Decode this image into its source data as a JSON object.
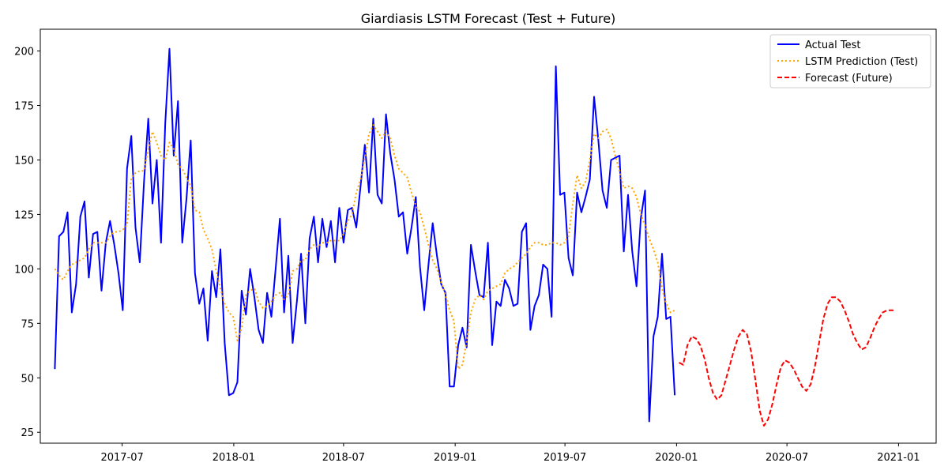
{
  "chart_data": {
    "type": "line",
    "title": "Giardiasis LSTM Forecast (Test + Future)",
    "xlabel": "",
    "ylabel": "",
    "xlim": [
      "2017-02-16",
      "2021-03-04"
    ],
    "ylim": [
      20,
      210
    ],
    "y_ticks": [
      25,
      50,
      75,
      100,
      125,
      150,
      175,
      200
    ],
    "x_ticks": [
      {
        "date": "2017-07-01",
        "label": "2017-07"
      },
      {
        "date": "2018-01-01",
        "label": "2018-01"
      },
      {
        "date": "2018-07-01",
        "label": "2018-07"
      },
      {
        "date": "2019-01-01",
        "label": "2019-01"
      },
      {
        "date": "2019-07-01",
        "label": "2019-07"
      },
      {
        "date": "2020-01-01",
        "label": "2020-01"
      },
      {
        "date": "2020-07-01",
        "label": "2020-07"
      },
      {
        "date": "2021-01-01",
        "label": "2021-01"
      }
    ],
    "grid": false,
    "legend_position": "top-right",
    "series": [
      {
        "name": "Actual Test",
        "color": "#0000ff",
        "style": "solid",
        "x": [
          "2017-03-12",
          "2017-03-19",
          "2017-03-26",
          "2017-04-02",
          "2017-04-09",
          "2017-04-16",
          "2017-04-23",
          "2017-04-30",
          "2017-05-07",
          "2017-05-14",
          "2017-05-21",
          "2017-05-28",
          "2017-06-04",
          "2017-06-11",
          "2017-06-18",
          "2017-06-25",
          "2017-07-02",
          "2017-07-09",
          "2017-07-16",
          "2017-07-23",
          "2017-07-30",
          "2017-08-06",
          "2017-08-13",
          "2017-08-20",
          "2017-08-27",
          "2017-09-03",
          "2017-09-10",
          "2017-09-17",
          "2017-09-24",
          "2017-10-01",
          "2017-10-08",
          "2017-10-15",
          "2017-10-22",
          "2017-10-29",
          "2017-11-05",
          "2017-11-12",
          "2017-11-19",
          "2017-11-26",
          "2017-12-03",
          "2017-12-10",
          "2017-12-17",
          "2017-12-24",
          "2017-12-31",
          "2018-01-07",
          "2018-01-14",
          "2018-01-21",
          "2018-01-28",
          "2018-02-04",
          "2018-02-11",
          "2018-02-18",
          "2018-02-25",
          "2018-03-04",
          "2018-03-11",
          "2018-03-18",
          "2018-03-25",
          "2018-04-01",
          "2018-04-08",
          "2018-04-15",
          "2018-04-22",
          "2018-04-29",
          "2018-05-06",
          "2018-05-13",
          "2018-05-20",
          "2018-05-27",
          "2018-06-03",
          "2018-06-10",
          "2018-06-17",
          "2018-06-24",
          "2018-07-01",
          "2018-07-08",
          "2018-07-15",
          "2018-07-22",
          "2018-07-29",
          "2018-08-05",
          "2018-08-12",
          "2018-08-19",
          "2018-08-26",
          "2018-09-02",
          "2018-09-09",
          "2018-09-16",
          "2018-09-23",
          "2018-09-30",
          "2018-10-07",
          "2018-10-14",
          "2018-10-21",
          "2018-10-28",
          "2018-11-04",
          "2018-11-11",
          "2018-11-18",
          "2018-11-25",
          "2018-12-02",
          "2018-12-09",
          "2018-12-16",
          "2018-12-23",
          "2018-12-30",
          "2019-01-06",
          "2019-01-13",
          "2019-01-20",
          "2019-01-27",
          "2019-02-03",
          "2019-02-10",
          "2019-02-17",
          "2019-02-24",
          "2019-03-03",
          "2019-03-10",
          "2019-03-17",
          "2019-03-24",
          "2019-03-31",
          "2019-04-07",
          "2019-04-14",
          "2019-04-21",
          "2019-04-28",
          "2019-05-05",
          "2019-05-12",
          "2019-05-19",
          "2019-05-26",
          "2019-06-02",
          "2019-06-09",
          "2019-06-16",
          "2019-06-23",
          "2019-06-30",
          "2019-07-07",
          "2019-07-14",
          "2019-07-21",
          "2019-07-28",
          "2019-08-04",
          "2019-08-11",
          "2019-08-18",
          "2019-08-25",
          "2019-09-01",
          "2019-09-08",
          "2019-09-15",
          "2019-09-22",
          "2019-09-29",
          "2019-10-06",
          "2019-10-13",
          "2019-10-20",
          "2019-10-27",
          "2019-11-03",
          "2019-11-10",
          "2019-11-17",
          "2019-11-24",
          "2019-12-01",
          "2019-12-08",
          "2019-12-15",
          "2019-12-22",
          "2019-12-29"
        ],
        "values": [
          54,
          115,
          117,
          126,
          80,
          93,
          124,
          131,
          96,
          116,
          117,
          90,
          112,
          122,
          111,
          98,
          81,
          146,
          161,
          119,
          103,
          140,
          169,
          130,
          150,
          112,
          167,
          201,
          152,
          177,
          112,
          132,
          159,
          98,
          84,
          91,
          67,
          99,
          87,
          109,
          66,
          42,
          43,
          48,
          90,
          79,
          100,
          87,
          72,
          66,
          89,
          78,
          100,
          123,
          80,
          106,
          66,
          85,
          107,
          75,
          114,
          124,
          103,
          123,
          110,
          122,
          103,
          128,
          112,
          127,
          128,
          119,
          138,
          157,
          135,
          169,
          134,
          130,
          171,
          153,
          141,
          124,
          126,
          107,
          119,
          133,
          101,
          81,
          102,
          121,
          106,
          93,
          89,
          46,
          46,
          65,
          73,
          64,
          111,
          99,
          88,
          87,
          112,
          65,
          85,
          83,
          95,
          91,
          83,
          84,
          117,
          121,
          72,
          83,
          88,
          102,
          100,
          78,
          193,
          134,
          135,
          105,
          97,
          135,
          126,
          133,
          141,
          179,
          159,
          136,
          128,
          150,
          151,
          152,
          108,
          134,
          108,
          92,
          123,
          136,
          30,
          69,
          78,
          107,
          77,
          78,
          42
        ]
      },
      {
        "name": "LSTM Prediction (Test)",
        "color": "#ffa500",
        "style": "dotted",
        "x": [
          "2017-03-12",
          "2017-03-19",
          "2017-03-26",
          "2017-04-02",
          "2017-04-09",
          "2017-04-16",
          "2017-04-23",
          "2017-04-30",
          "2017-05-07",
          "2017-05-14",
          "2017-05-21",
          "2017-05-28",
          "2017-06-04",
          "2017-06-11",
          "2017-06-18",
          "2017-06-25",
          "2017-07-02",
          "2017-07-09",
          "2017-07-16",
          "2017-07-23",
          "2017-07-30",
          "2017-08-06",
          "2017-08-13",
          "2017-08-20",
          "2017-08-27",
          "2017-09-03",
          "2017-09-10",
          "2017-09-17",
          "2017-09-24",
          "2017-10-01",
          "2017-10-08",
          "2017-10-15",
          "2017-10-22",
          "2017-10-29",
          "2017-11-05",
          "2017-11-12",
          "2017-11-19",
          "2017-11-26",
          "2017-12-03",
          "2017-12-10",
          "2017-12-17",
          "2017-12-24",
          "2017-12-31",
          "2018-01-07",
          "2018-01-14",
          "2018-01-21",
          "2018-01-28",
          "2018-02-04",
          "2018-02-11",
          "2018-02-18",
          "2018-02-25",
          "2018-03-04",
          "2018-03-11",
          "2018-03-18",
          "2018-03-25",
          "2018-04-01",
          "2018-04-08",
          "2018-04-15",
          "2018-04-22",
          "2018-04-29",
          "2018-05-06",
          "2018-05-13",
          "2018-05-20",
          "2018-05-27",
          "2018-06-03",
          "2018-06-10",
          "2018-06-17",
          "2018-06-24",
          "2018-07-01",
          "2018-07-08",
          "2018-07-15",
          "2018-07-22",
          "2018-07-29",
          "2018-08-05",
          "2018-08-12",
          "2018-08-19",
          "2018-08-26",
          "2018-09-02",
          "2018-09-09",
          "2018-09-16",
          "2018-09-23",
          "2018-09-30",
          "2018-10-07",
          "2018-10-14",
          "2018-10-21",
          "2018-10-28",
          "2018-11-04",
          "2018-11-11",
          "2018-11-18",
          "2018-11-25",
          "2018-12-02",
          "2018-12-09",
          "2018-12-16",
          "2018-12-23",
          "2018-12-30",
          "2019-01-06",
          "2019-01-13",
          "2019-01-20",
          "2019-01-27",
          "2019-02-03",
          "2019-02-10",
          "2019-02-17",
          "2019-02-24",
          "2019-03-03",
          "2019-03-10",
          "2019-03-17",
          "2019-03-24",
          "2019-03-31",
          "2019-04-07",
          "2019-04-14",
          "2019-04-21",
          "2019-04-28",
          "2019-05-05",
          "2019-05-12",
          "2019-05-19",
          "2019-05-26",
          "2019-06-02",
          "2019-06-09",
          "2019-06-16",
          "2019-06-23",
          "2019-06-30",
          "2019-07-07",
          "2019-07-14",
          "2019-07-21",
          "2019-07-28",
          "2019-08-04",
          "2019-08-11",
          "2019-08-18",
          "2019-08-25",
          "2019-09-01",
          "2019-09-08",
          "2019-09-15",
          "2019-09-22",
          "2019-09-29",
          "2019-10-06",
          "2019-10-13",
          "2019-10-20",
          "2019-10-27",
          "2019-11-03",
          "2019-11-10",
          "2019-11-17",
          "2019-11-24",
          "2019-12-01",
          "2019-12-08",
          "2019-12-15",
          "2019-12-22",
          "2019-12-29"
        ],
        "values": [
          100,
          97,
          95,
          99,
          102,
          103,
          104,
          105,
          109,
          112,
          112,
          112,
          112,
          115,
          117,
          117,
          118,
          120,
          142,
          144,
          145,
          145,
          155,
          163,
          158,
          152,
          150,
          158,
          155,
          148,
          146,
          142,
          138,
          127,
          126,
          118,
          114,
          109,
          99,
          91,
          84,
          80,
          78,
          67,
          73,
          88,
          90,
          91,
          85,
          82,
          83,
          85,
          88,
          89,
          86,
          88,
          99,
          100,
          104,
          104,
          109,
          111,
          110,
          112,
          112,
          113,
          113,
          113,
          116,
          122,
          125,
          135,
          141,
          151,
          162,
          166,
          163,
          160,
          163,
          160,
          152,
          146,
          144,
          142,
          135,
          129,
          126,
          119,
          111,
          104,
          100,
          94,
          88,
          81,
          76,
          54,
          56,
          67,
          80,
          86,
          88,
          86,
          90,
          91,
          92,
          93,
          98,
          100,
          101,
          103,
          105,
          107,
          110,
          112,
          112,
          111,
          111,
          112,
          112,
          111,
          112,
          115,
          130,
          143,
          137,
          140,
          150,
          162,
          160,
          163,
          164,
          160,
          152,
          145,
          137,
          138,
          137,
          133,
          125,
          120,
          114,
          109,
          103,
          91,
          84,
          80,
          81
        ]
      },
      {
        "name": "Forecast (Future)",
        "color": "#ff0000",
        "style": "dashed",
        "x": [
          "2020-01-05",
          "2020-01-12",
          "2020-01-19",
          "2020-01-26",
          "2020-02-02",
          "2020-02-09",
          "2020-02-16",
          "2020-02-23",
          "2020-03-01",
          "2020-03-08",
          "2020-03-15",
          "2020-03-22",
          "2020-03-29",
          "2020-04-05",
          "2020-04-12",
          "2020-04-19",
          "2020-04-26",
          "2020-05-03",
          "2020-05-10",
          "2020-05-17",
          "2020-05-24",
          "2020-05-31",
          "2020-06-07",
          "2020-06-14",
          "2020-06-21",
          "2020-06-28",
          "2020-07-05",
          "2020-07-12",
          "2020-07-19",
          "2020-07-26",
          "2020-08-02",
          "2020-08-09",
          "2020-08-16",
          "2020-08-23",
          "2020-08-30",
          "2020-09-06",
          "2020-09-13",
          "2020-09-20",
          "2020-09-27",
          "2020-10-04",
          "2020-10-11",
          "2020-10-18",
          "2020-10-25",
          "2020-11-01",
          "2020-11-08",
          "2020-11-15",
          "2020-11-22",
          "2020-11-29",
          "2020-12-06",
          "2020-12-13",
          "2020-12-20",
          "2020-12-27"
        ],
        "values": [
          57,
          56,
          65,
          69,
          68,
          65,
          59,
          50,
          43,
          40,
          42,
          49,
          56,
          63,
          69,
          72,
          70,
          62,
          49,
          35,
          28,
          31,
          38,
          47,
          55,
          58,
          57,
          54,
          50,
          46,
          44,
          47,
          55,
          66,
          77,
          84,
          87,
          87,
          85,
          81,
          76,
          70,
          66,
          63,
          64,
          68,
          73,
          77,
          80,
          81,
          81,
          81
        ]
      }
    ]
  }
}
